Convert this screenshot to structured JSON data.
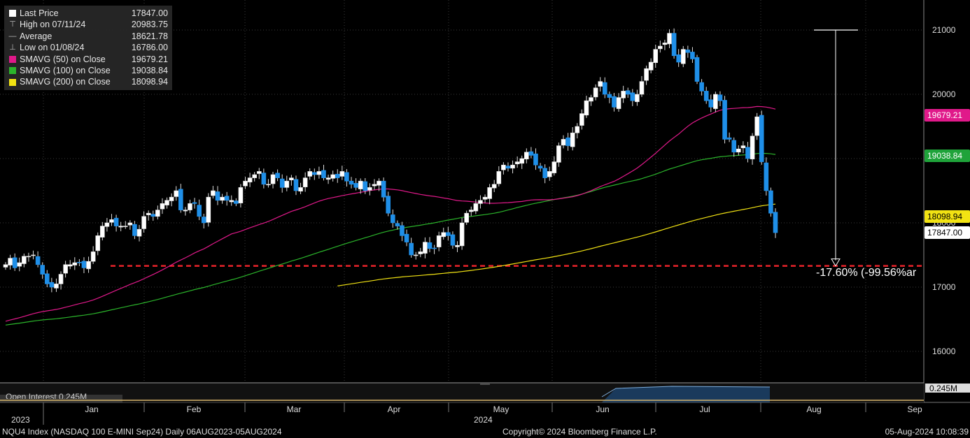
{
  "legend": [
    {
      "label": "Last Price",
      "value": "17847.00",
      "symbol": "square",
      "color": "#ffffff"
    },
    {
      "label": "High on 07/11/24",
      "value": "20983.75",
      "symbol": "high",
      "color": "#cccccc"
    },
    {
      "label": "Average",
      "value": "18621.78",
      "symbol": "avg",
      "color": "#cccccc"
    },
    {
      "label": "Low on 01/08/24",
      "value": "16786.00",
      "symbol": "low",
      "color": "#cccccc"
    },
    {
      "label": "SMAVG (50)  on Close",
      "value": "19679.21",
      "symbol": "square",
      "color": "#e0198a"
    },
    {
      "label": "SMAVG (100)  on Close",
      "value": "19038.84",
      "symbol": "square",
      "color": "#2bb52b"
    },
    {
      "label": "SMAVG (200)  on Close",
      "value": "18098.94",
      "symbol": "square",
      "color": "#f2e313"
    }
  ],
  "tags": [
    {
      "value": "19679.21",
      "bg": "#e0198a",
      "fg": "#ffffff"
    },
    {
      "value": "19038.84",
      "bg": "#1fa33a",
      "fg": "#ffffff"
    },
    {
      "value": "18098.94",
      "bg": "#f2e313",
      "fg": "#000000"
    },
    {
      "value": "17847.00",
      "bg": "#ffffff",
      "fg": "#000000"
    }
  ],
  "annotation": "-17.60% (-99.56%ar",
  "oi": {
    "label": "Open Interest  0.245M",
    "tag": "0.245M"
  },
  "footer": {
    "left": "NQU4 Index (NASDAQ 100 E-MINI Sep24)  Daily 06AUG2023-05AUG2024",
    "center": "Copyright© 2024 Bloomberg Finance L.P.",
    "right": "05-Aug-2024 10:08:39"
  },
  "years": [
    "2023",
    "2024"
  ],
  "chart_data": {
    "type": "candlestick",
    "ylim": [
      15500,
      21250
    ],
    "yticks": [
      16000,
      17000,
      18000,
      19000,
      20000,
      21000
    ],
    "months": [
      "Jan",
      "Feb",
      "Mar",
      "Apr",
      "May",
      "Jun",
      "Jul",
      "Aug",
      "Sep"
    ],
    "support_level": 17330,
    "measure": {
      "from": 21000,
      "to": 17330
    },
    "sma50_end": 19679.21,
    "sma100_end": 19038.84,
    "sma200_end": 18098.94,
    "last_price": 17847.0,
    "closes": [
      17350,
      17450,
      17300,
      17380,
      17480,
      17480,
      17500,
      17350,
      17200,
      17050,
      17000,
      17050,
      17200,
      17350,
      17350,
      17380,
      17380,
      17300,
      17400,
      17550,
      17800,
      17950,
      18000,
      18050,
      17950,
      17950,
      17950,
      18000,
      17800,
      17900,
      18100,
      18150,
      18100,
      18200,
      18300,
      18350,
      18400,
      18500,
      18200,
      18200,
      18300,
      18300,
      18100,
      18000,
      18400,
      18500,
      18350,
      18400,
      18350,
      18350,
      18300,
      18550,
      18650,
      18700,
      18750,
      18800,
      18600,
      18600,
      18750,
      18700,
      18550,
      18650,
      18700,
      18500,
      18550,
      18700,
      18800,
      18750,
      18800,
      18700,
      18700,
      18750,
      18700,
      18800,
      18650,
      18600,
      18550,
      18650,
      18500,
      18550,
      18600,
      18650,
      18400,
      18150,
      18000,
      17950,
      17800,
      17700,
      17500,
      17500,
      17550,
      17700,
      17600,
      17600,
      17800,
      17850,
      17800,
      17650,
      17650,
      18000,
      18150,
      18200,
      18300,
      18350,
      18400,
      18550,
      18600,
      18800,
      18900,
      18850,
      18900,
      18950,
      19000,
      19100,
      19050,
      18900,
      18850,
      18700,
      18800,
      18950,
      19200,
      19300,
      19200,
      19400,
      19500,
      19700,
      19900,
      19950,
      20100,
      20200,
      20000,
      19950,
      19800,
      19950,
      20050,
      20000,
      19900,
      20000,
      20200,
      20400,
      20500,
      20700,
      20750,
      20800,
      20950,
      20600,
      20500,
      20700,
      20650,
      20550,
      20200,
      20050,
      19900,
      19800,
      20000,
      19900,
      19300,
      19300,
      19100,
      19150,
      19200,
      19000,
      19350,
      19650,
      18950,
      18500,
      18150,
      17847
    ]
  }
}
